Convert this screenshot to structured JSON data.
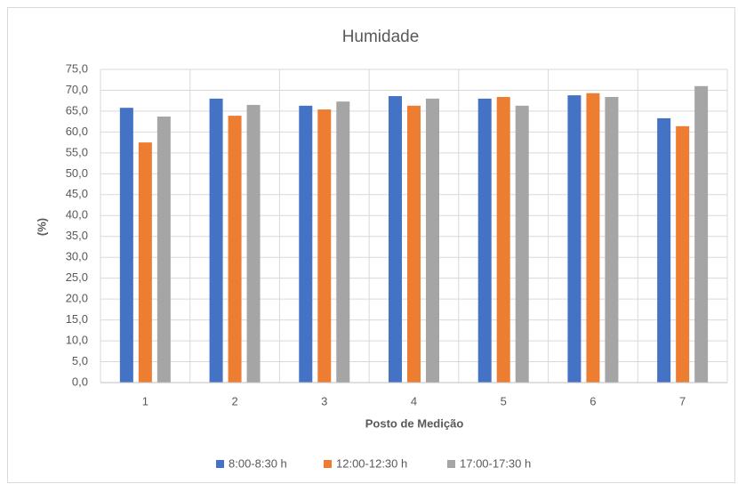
{
  "chart_data": {
    "type": "bar",
    "title": "Humidade",
    "x_label": "Posto de Medição",
    "y_label": "(%)",
    "categories": [
      "1",
      "2",
      "3",
      "4",
      "5",
      "6",
      "7"
    ],
    "series": [
      {
        "name": "8:00-8:30 h",
        "color": "#4472c4",
        "values": [
          65.8,
          68.0,
          66.3,
          68.6,
          68.0,
          68.8,
          63.3
        ]
      },
      {
        "name": "12:00-12:30 h",
        "color": "#ed7d31",
        "values": [
          57.5,
          63.9,
          65.4,
          66.3,
          68.4,
          69.3,
          61.4
        ]
      },
      {
        "name": "17:00-17:30 h",
        "color": "#a5a5a5",
        "values": [
          63.7,
          66.5,
          67.3,
          68.0,
          66.3,
          68.4,
          71.0
        ]
      }
    ],
    "ylim": [
      0,
      75
    ],
    "yticks": [
      {
        "value": 0,
        "label": "0,0"
      },
      {
        "value": 5,
        "label": "5,0"
      },
      {
        "value": 10,
        "label": "10,0"
      },
      {
        "value": 15,
        "label": "15,0"
      },
      {
        "value": 20,
        "label": "20,0"
      },
      {
        "value": 25,
        "label": "25,0"
      },
      {
        "value": 30,
        "label": "30,0"
      },
      {
        "value": 35,
        "label": "35,0"
      },
      {
        "value": 40,
        "label": "40,0"
      },
      {
        "value": 45,
        "label": "45,0"
      },
      {
        "value": 50,
        "label": "50,0"
      },
      {
        "value": 55,
        "label": "55,0"
      },
      {
        "value": 60,
        "label": "60,0"
      },
      {
        "value": 65,
        "label": "65,0"
      },
      {
        "value": 70,
        "label": "70,0"
      },
      {
        "value": 75,
        "label": "75,0"
      }
    ],
    "grid": true,
    "legend": "bottom"
  }
}
